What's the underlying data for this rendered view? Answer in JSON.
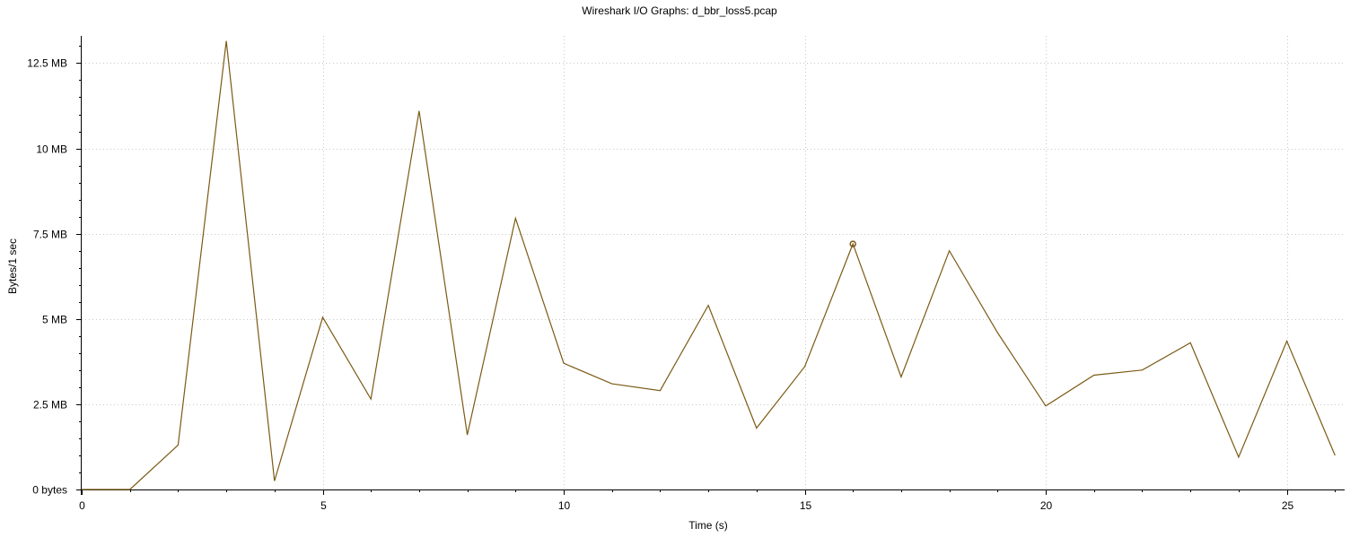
{
  "chart_data": {
    "type": "line",
    "title": "Wireshark I/O Graphs: d_bbr_loss5.pcap",
    "xlabel": "Time (s)",
    "ylabel": "Bytes/1 sec",
    "xlim": [
      0,
      26.2
    ],
    "ylim": [
      0,
      13.3
    ],
    "grid": true,
    "x_ticks": [
      0,
      5,
      10,
      15,
      20,
      25
    ],
    "x_tick_labels": [
      "0",
      "5",
      "10",
      "15",
      "20",
      "25"
    ],
    "y_ticks": [
      0,
      2.5,
      5,
      7.5,
      10,
      12.5
    ],
    "y_tick_labels": [
      "0 bytes",
      "2.5 MB",
      "5 MB",
      "7.5 MB",
      "10 MB",
      "12.5 MB"
    ],
    "series": [
      {
        "color": "#7b5a14",
        "x": [
          0,
          1,
          2,
          3,
          4,
          5,
          6,
          7,
          8,
          9,
          10,
          11,
          12,
          13,
          14,
          15,
          16,
          17,
          18,
          19,
          20,
          21,
          22,
          23,
          24,
          25,
          26
        ],
        "y": [
          0,
          0,
          1.3,
          13.15,
          0.25,
          5.05,
          2.65,
          11.1,
          1.6,
          7.95,
          3.7,
          3.1,
          2.9,
          5.4,
          1.8,
          3.6,
          7.2,
          3.3,
          7.0,
          4.6,
          2.45,
          3.35,
          3.5,
          4.3,
          0.95,
          4.35,
          1.0
        ]
      }
    ],
    "marker": {
      "x": 16,
      "y": 7.2,
      "shape": "circle"
    }
  }
}
